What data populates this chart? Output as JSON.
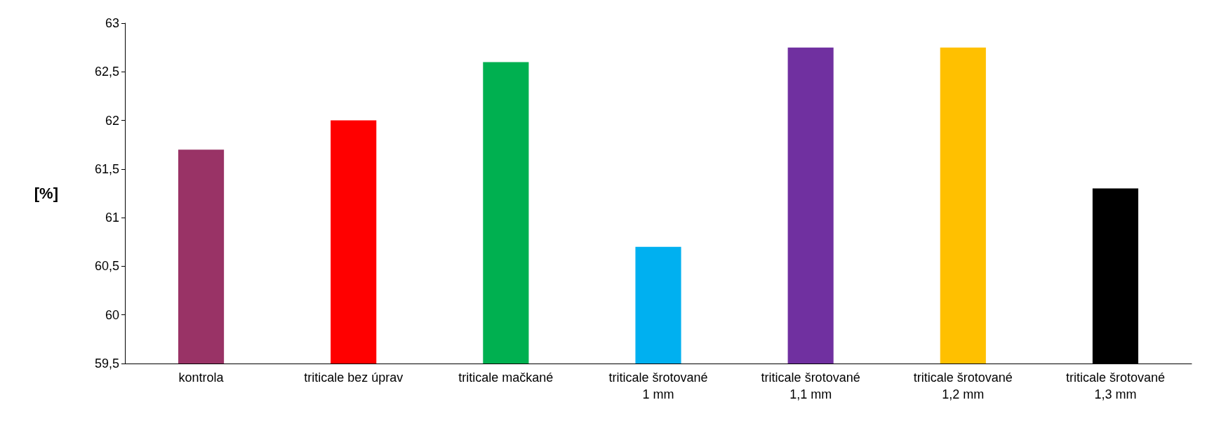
{
  "chart_data": {
    "type": "bar",
    "ylabel": "[%]",
    "categories": [
      "kontrola",
      "triticale bez úprav",
      "triticale mačkané",
      "triticale šrotované\n1 mm",
      "triticale šrotované\n1,1 mm",
      "triticale šrotované\n1,2 mm",
      "triticale šrotované\n1,3 mm"
    ],
    "values": [
      61.7,
      62.0,
      62.6,
      60.7,
      62.75,
      62.75,
      61.3
    ],
    "colors": [
      "#993366",
      "#ff0000",
      "#00b050",
      "#00b0f0",
      "#7030a0",
      "#ffc000",
      "#000000"
    ],
    "ylim": [
      59.5,
      63
    ],
    "yticks": [
      {
        "value": 59.5,
        "label": "59,5"
      },
      60,
      {
        "value": 60.5,
        "label": "60,5"
      },
      61,
      {
        "value": 61.5,
        "label": "61,5"
      },
      62,
      {
        "value": 62.5,
        "label": "62,5"
      },
      63
    ],
    "grid": false
  }
}
